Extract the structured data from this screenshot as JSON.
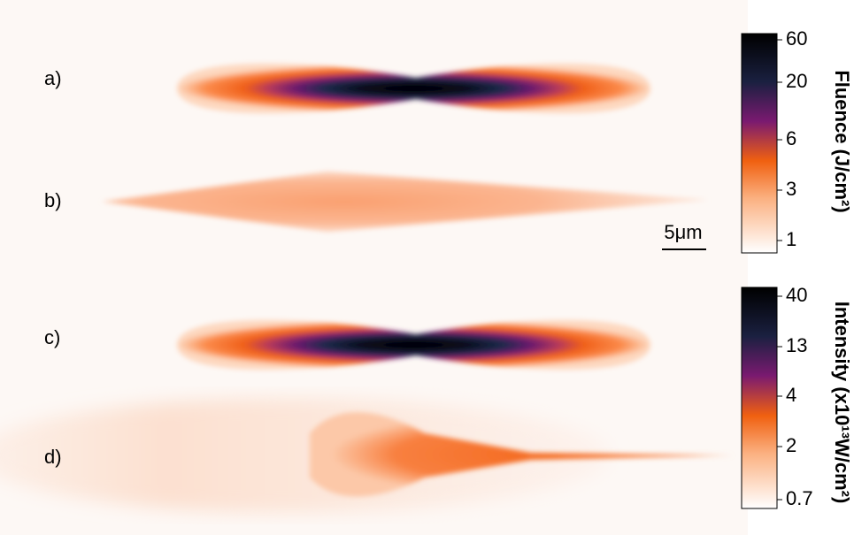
{
  "panels": [
    "a)",
    "b)",
    "c)",
    "d)"
  ],
  "scale_bar": "5μm",
  "colorbars": [
    {
      "title": "Fluence (J/cm²)",
      "ticks": [
        60,
        20,
        6,
        3,
        1
      ]
    },
    {
      "title": "Intensity (x10¹³W/cm²)",
      "ticks": [
        40,
        13,
        4,
        2,
        0.7
      ]
    }
  ]
}
